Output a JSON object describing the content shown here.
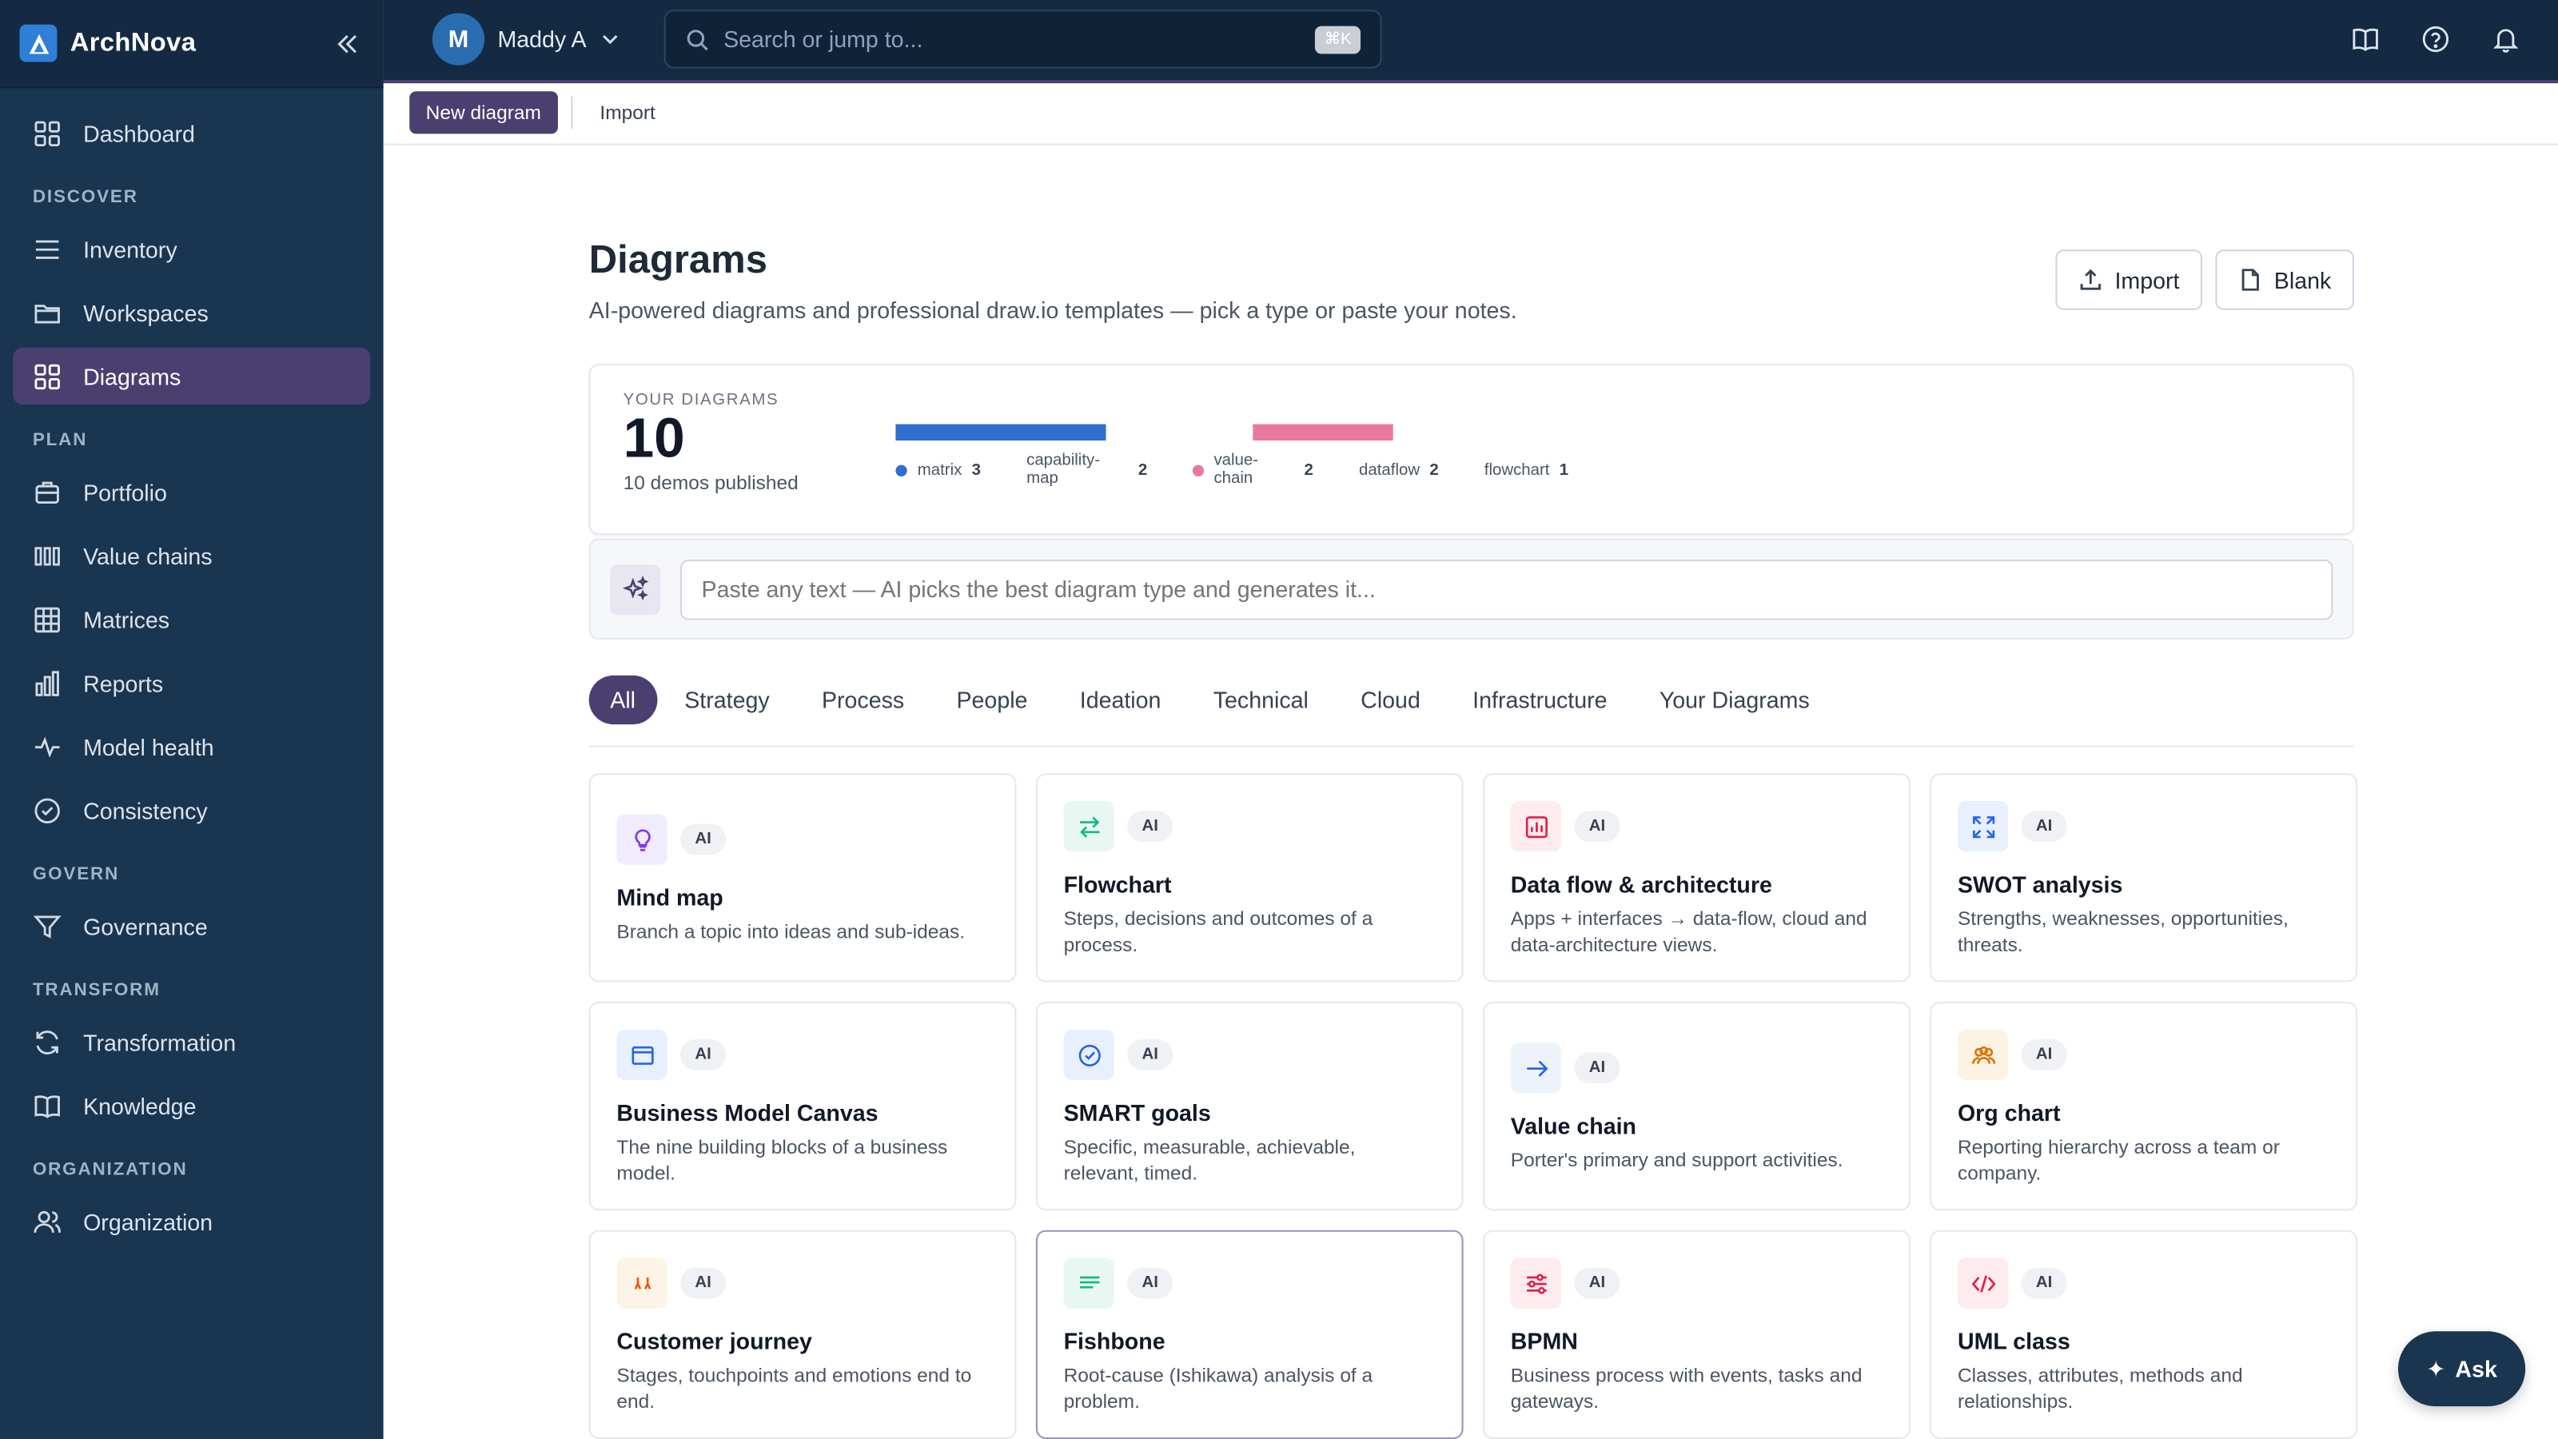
{
  "brand": {
    "name": "ArchNova"
  },
  "sidebar": {
    "items": [
      {
        "label": "Dashboard"
      },
      {
        "section": "DISCOVER"
      },
      {
        "label": "Inventory"
      },
      {
        "label": "Workspaces"
      },
      {
        "label": "Diagrams"
      },
      {
        "section": "PLAN"
      },
      {
        "label": "Portfolio"
      },
      {
        "label": "Value chains"
      },
      {
        "label": "Matrices"
      },
      {
        "label": "Reports"
      },
      {
        "label": "Model health"
      },
      {
        "label": "Consistency"
      },
      {
        "section": "GOVERN"
      },
      {
        "label": "Governance"
      },
      {
        "section": "TRANSFORM"
      },
      {
        "label": "Transformation"
      },
      {
        "label": "Knowledge"
      },
      {
        "section": "ORGANIZATION"
      },
      {
        "label": "Organization"
      }
    ]
  },
  "topbar": {
    "user_initial": "M",
    "user_name": "Maddy A",
    "search_placeholder": "Search or jump to...",
    "search_shortcut": "⌘K"
  },
  "toolbar": {
    "new_label": "New diagram",
    "import_label": "Import"
  },
  "page": {
    "title": "Diagrams",
    "subtitle": "AI-powered diagrams and professional draw.io templates — pick a type or paste your notes.",
    "import_button": "Import",
    "blank_button": "Blank"
  },
  "stats": {
    "label": "YOUR DIAGRAMS",
    "count": "10",
    "sub": "10 demos published",
    "breakdown": [
      {
        "name": "matrix",
        "count": 3,
        "color": "#2f6fd0"
      },
      {
        "name": "capability-map",
        "count": 2,
        "color": "#ffffff"
      },
      {
        "name": "value-chain",
        "count": 2,
        "color": "#e879a1"
      },
      {
        "name": "dataflow",
        "count": 2,
        "color": "#ffffff"
      },
      {
        "name": "flowchart",
        "count": 1,
        "color": "#ffffff"
      }
    ]
  },
  "ai_input": {
    "placeholder": "Paste any text — AI picks the best diagram type and generates it..."
  },
  "tabs": [
    "All",
    "Strategy",
    "Process",
    "People",
    "Ideation",
    "Technical",
    "Cloud",
    "Infrastructure",
    "Your Diagrams"
  ],
  "ai_badge": "AI",
  "cards": [
    {
      "title": "Mind map",
      "desc": "Branch a topic into ideas and sub-ideas.",
      "icon": "lightbulb-icon",
      "color": "#7c3aed",
      "bg": "#f1ecfd"
    },
    {
      "title": "Flowchart",
      "desc": "Steps, decisions and outcomes of a process.",
      "icon": "arrows-swap-icon",
      "color": "#10b981",
      "bg": "#e8f8f1"
    },
    {
      "title": "Data flow & architecture",
      "desc": "Apps + interfaces → data-flow, cloud and data-architecture views.",
      "icon": "chart-icon",
      "color": "#e11d48",
      "bg": "#fdebee"
    },
    {
      "title": "SWOT analysis",
      "desc": "Strengths, weaknesses, opportunities, threats.",
      "icon": "expand-icon",
      "color": "#2563eb",
      "bg": "#e9f0fd"
    },
    {
      "title": "Business Model Canvas",
      "desc": "The nine building blocks of a business model.",
      "icon": "canvas-icon",
      "color": "#2563eb",
      "bg": "#e9f0fd"
    },
    {
      "title": "SMART goals",
      "desc": "Specific, measurable, achievable, relevant, timed.",
      "icon": "check-circle-icon",
      "color": "#2563eb",
      "bg": "#e9f0fd"
    },
    {
      "title": "Value chain",
      "desc": "Porter's primary and support activities.",
      "icon": "arrow-right-icon",
      "color": "#2563eb",
      "bg": "#eef3fb"
    },
    {
      "title": "Org chart",
      "desc": "Reporting hierarchy across a team or company.",
      "icon": "people-icon",
      "color": "#d97706",
      "bg": "#fdf3e3"
    },
    {
      "title": "Customer journey",
      "desc": "Stages, touchpoints and emotions end to end.",
      "icon": "footsteps-icon",
      "color": "#ea580c",
      "bg": "#fdf3e6"
    },
    {
      "title": "Fishbone",
      "desc": "Root-cause (Ishikawa) analysis of a problem.",
      "icon": "lines-icon",
      "color": "#10b981",
      "bg": "#e8f8f1"
    },
    {
      "title": "BPMN",
      "desc": "Business process with events, tasks and gateways.",
      "icon": "sliders-icon",
      "color": "#e11d48",
      "bg": "#fdebee"
    },
    {
      "title": "UML class",
      "desc": "Classes, attributes, methods and relationships.",
      "icon": "code-icon",
      "color": "#e11d48",
      "bg": "#fdebee"
    }
  ],
  "ask": {
    "label": "Ask"
  }
}
